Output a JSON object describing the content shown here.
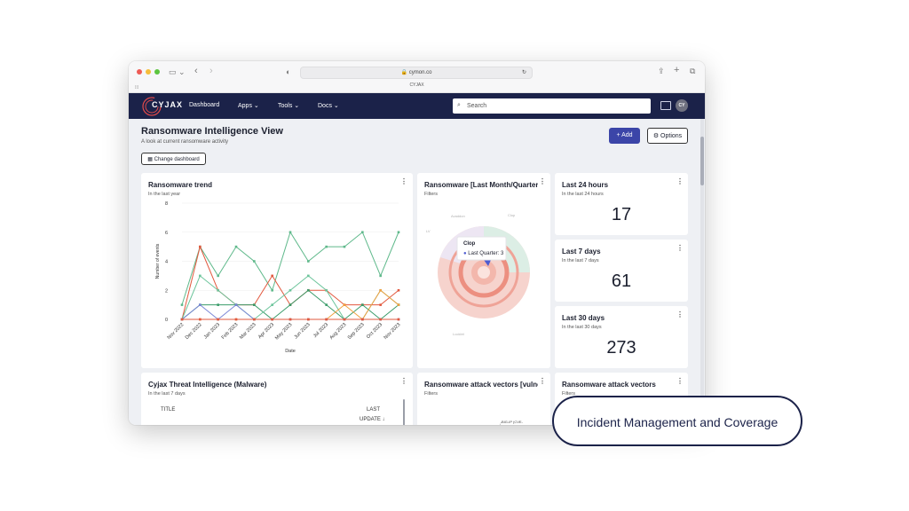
{
  "browser": {
    "url": "cymon.co",
    "tab_title": "CYJAX"
  },
  "nav": {
    "brand": "CYJAX",
    "items": [
      "Dashboard",
      "Apps",
      "Tools",
      "Docs"
    ],
    "search_placeholder": "Search",
    "avatar_initials": "CY"
  },
  "page": {
    "title": "Ransomware Intelligence View",
    "subtitle": "A look at current ransomware activity",
    "add_label": "+ Add",
    "options_label": "Options",
    "change_dashboard_label": "Change dashboard"
  },
  "cards": {
    "trend": {
      "title": "Ransomware trend",
      "subtitle": "In the last year"
    },
    "donut": {
      "title": "Ransomware [Last Month/Quarter]",
      "subtitle": "Filters",
      "tooltip_title": "Clop",
      "tooltip_item": "Last Quarter: 3"
    },
    "last24": {
      "title": "Last 24 hours",
      "subtitle": "In the last 24 hours",
      "value": "17"
    },
    "last7": {
      "title": "Last 7 days",
      "subtitle": "In the last 7 days",
      "value": "61"
    },
    "last30": {
      "title": "Last 30 days",
      "subtitle": "In the last 30 days",
      "value": "273"
    },
    "malware": {
      "title": "Cyjax Threat Intelligence (Malware)",
      "subtitle": "In the last 7 days",
      "col_title": "TITLE",
      "col_update_1": "LAST",
      "col_update_2": "UPDATE ↓"
    },
    "vectors_vuln": {
      "title": "Ransomware attack vectors [vulnerabilities]",
      "subtitle": "Filters"
    },
    "vectors": {
      "title": "Ransomware attack vectors",
      "subtitle": "Filters"
    }
  },
  "callout": {
    "text": "Incident Management and Coverage"
  },
  "colors": {
    "navy": "#1b2249",
    "accent": "#3b45a8",
    "green": "#5fb98b",
    "teal_green": "#3a9c6a",
    "red": "#e2583e",
    "orange": "#f0a040",
    "pink": "#f2b9b2"
  },
  "chart_data": {
    "type": "line",
    "title": "",
    "xlabel": "Date",
    "ylabel": "Number of events",
    "ylim": [
      0,
      8
    ],
    "yticks": [
      0,
      2,
      4,
      6,
      8
    ],
    "categories": [
      "Nov 2022",
      "Dec 2022",
      "Jan 2023",
      "Feb 2023",
      "Mar 2023",
      "Apr 2023",
      "May 2023",
      "Jun 2023",
      "Jul 2023",
      "Aug 2023",
      "Sep 2023",
      "Oct 2023",
      "Nov 2023"
    ],
    "series": [
      {
        "color": "#5fb98b",
        "values": [
          1,
          5,
          3,
          5,
          4,
          2,
          6,
          4,
          5,
          5,
          6,
          3,
          6
        ]
      },
      {
        "color": "#e2583e",
        "values": [
          0,
          5,
          2,
          1,
          1,
          3,
          1,
          2,
          2,
          1,
          1,
          1,
          2
        ]
      },
      {
        "color": "#3a9c6a",
        "values": [
          0,
          1,
          1,
          1,
          1,
          0,
          1,
          2,
          1,
          0,
          1,
          0,
          1
        ]
      },
      {
        "color": "#6cc49b",
        "values": [
          0,
          3,
          2,
          1,
          0,
          1,
          2,
          3,
          2,
          0,
          0,
          2,
          1
        ]
      },
      {
        "color": "#f0a040",
        "values": [
          0,
          0,
          0,
          0,
          0,
          0,
          0,
          0,
          0,
          1,
          0,
          2,
          1
        ]
      },
      {
        "color": "#7a86d6",
        "values": [
          0,
          1,
          0,
          1,
          0,
          0,
          0,
          0,
          0,
          0,
          0,
          0,
          0
        ]
      },
      {
        "color": "#e2583e",
        "values": [
          0,
          0,
          0,
          0,
          0,
          0,
          0,
          0,
          0,
          0,
          0,
          0,
          0
        ]
      }
    ]
  }
}
